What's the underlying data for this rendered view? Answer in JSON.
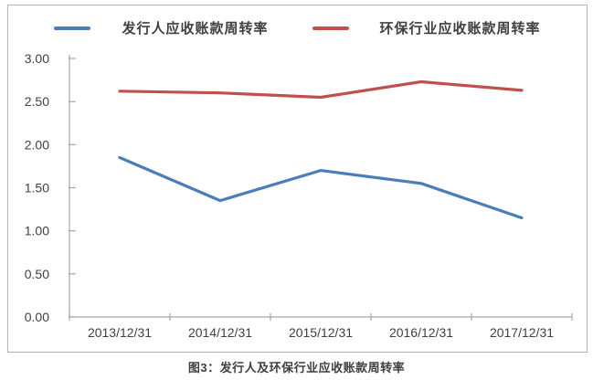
{
  "caption": "图3：发行人及环保行业应收账款周转率",
  "legend": {
    "items": [
      {
        "label": "发行人应收账款周转率",
        "color": "#4a7ebb"
      },
      {
        "label": "环保行业应收账款周转率",
        "color": "#c0504d"
      }
    ]
  },
  "chart_data": {
    "type": "line",
    "title": "图3：发行人及环保行业应收账款周转率",
    "categories": [
      "2013/12/31",
      "2014/12/31",
      "2015/12/31",
      "2016/12/31",
      "2017/12/31"
    ],
    "series": [
      {
        "name": "发行人应收账款周转率",
        "color": "#4a7ebb",
        "values": [
          1.85,
          1.35,
          1.7,
          1.55,
          1.15
        ]
      },
      {
        "name": "环保行业应收账款周转率",
        "color": "#c0504d",
        "values": [
          2.62,
          2.6,
          2.55,
          2.73,
          2.63
        ]
      }
    ],
    "xlabel": "",
    "ylabel": "",
    "ylim": [
      0.0,
      3.0
    ],
    "ytick_step": 0.5,
    "ytick_labels": [
      "0.00",
      "0.50",
      "1.00",
      "1.50",
      "2.00",
      "2.50",
      "3.00"
    ],
    "grid": false,
    "legend_position": "top",
    "axis_color": "#a6a6a6",
    "label_color": "#404040",
    "line_width": 3.2
  }
}
